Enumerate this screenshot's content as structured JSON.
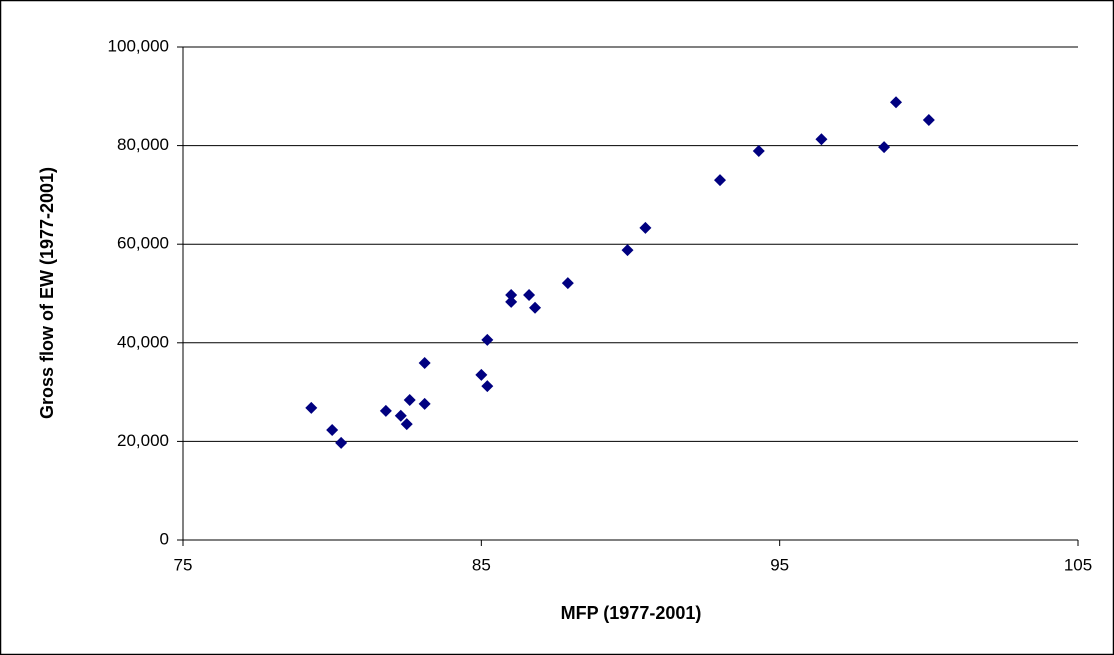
{
  "chart_data": {
    "type": "scatter",
    "x_label": "MFP (1977-2001)",
    "y_label": "Gross flow of EW (1977-2001)",
    "series": [
      {
        "color": "#000080",
        "x": [
          79.3,
          80.0,
          80.3,
          81.8,
          82.3,
          82.5,
          82.6,
          83.1,
          83.1,
          85.0,
          85.2,
          85.2,
          86.0,
          86.0,
          86.6,
          86.8,
          87.9,
          89.9,
          90.5,
          93.0,
          94.3,
          96.4,
          98.5,
          98.9,
          100.0
        ],
        "values": [
          26800,
          22300,
          19700,
          26200,
          25200,
          23500,
          28400,
          35900,
          27600,
          33500,
          40600,
          31200,
          49700,
          48300,
          49700,
          47100,
          52100,
          58800,
          63300,
          73000,
          78900,
          81300,
          79700,
          88800,
          85200
        ]
      }
    ],
    "xlim": [
      75,
      105
    ],
    "xticks": [
      75,
      85,
      95,
      105
    ],
    "ylim": [
      0,
      100000
    ],
    "yticks": [
      0,
      {
        "value": 20000,
        "label": "20,000"
      },
      {
        "value": 40000,
        "label": "40,000"
      },
      {
        "value": 60000,
        "label": "60,000"
      },
      {
        "value": 80000,
        "label": "80,000"
      },
      {
        "value": 100000,
        "label": "100,000"
      }
    ],
    "grid": true
  }
}
